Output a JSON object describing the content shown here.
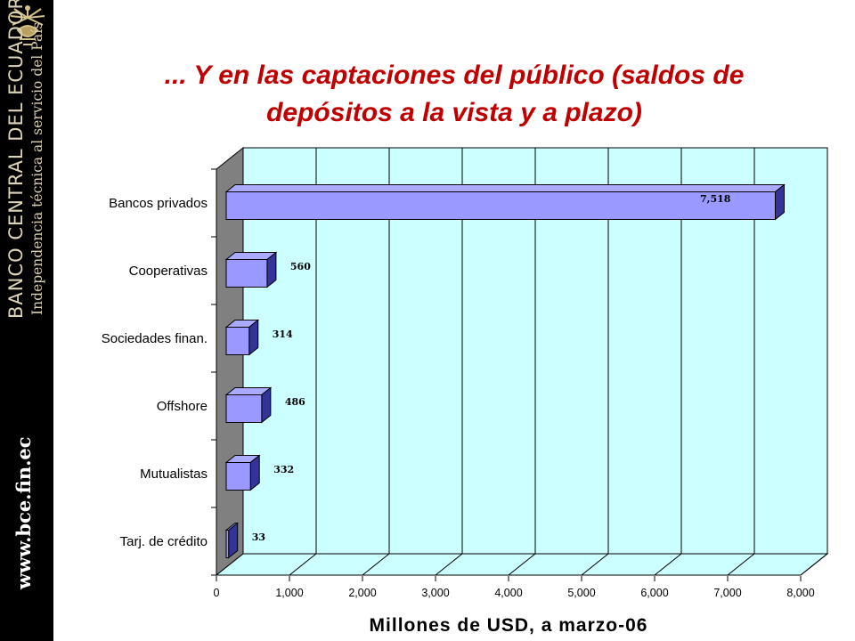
{
  "slide": {
    "title_line1": "... Y en las captaciones del público (saldos de",
    "title_line2": "depósitos a la vista y a plazo)"
  },
  "branding": {
    "name": "BANCO CENTRAL DEL ECUADOR",
    "tagline": "Independencia técnica al servicio del País",
    "website": "www.bce.fin.ec"
  },
  "colors": {
    "title": "#c00000",
    "plot_background": "#ccffff",
    "wall": "#808080",
    "bar_face": "#9999ff",
    "bar_top": "#aaaaff",
    "bar_side": "#333399",
    "sidebar": "#000000"
  },
  "chart_data": {
    "type": "bar",
    "orientation": "horizontal",
    "style": "3d",
    "categories": [
      "Bancos privados",
      "Cooperativas",
      "Sociedades finan.",
      "Offshore",
      "Mutualistas",
      "Tarj. de crédito"
    ],
    "values": [
      7518,
      560,
      314,
      486,
      332,
      33
    ],
    "value_labels": [
      "7,518",
      "560",
      "314",
      "486",
      "332",
      "33"
    ],
    "xlabel": "Millones de USD, a marzo-06",
    "xlim": [
      0,
      8000
    ],
    "xticks": [
      "0",
      "1,000",
      "2,000",
      "3,000",
      "4,000",
      "5,000",
      "6,000",
      "7,000",
      "8,000"
    ],
    "grid": true,
    "legend": "none"
  }
}
